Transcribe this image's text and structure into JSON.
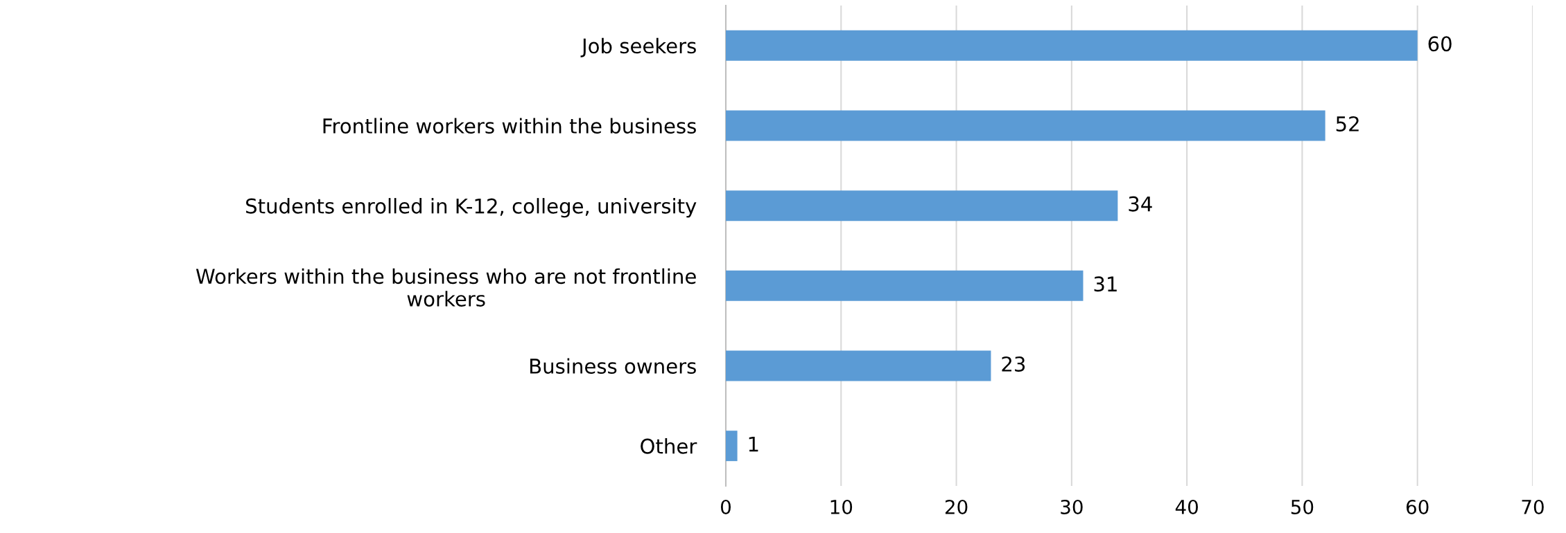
{
  "chart_data": {
    "type": "bar",
    "orientation": "horizontal",
    "categories": [
      "Job seekers",
      "Frontline workers within the business",
      "Students enrolled in K-12, college, university",
      "Workers within the business who are not frontline\nworkers",
      "Business owners",
      "Other"
    ],
    "values": [
      60,
      52,
      34,
      31,
      23,
      1
    ],
    "color": "#5b9bd5",
    "xlim": [
      0,
      70
    ],
    "xticks": [
      0,
      10,
      20,
      30,
      40,
      50,
      60,
      70
    ],
    "grid": "x",
    "data_labels": true
  }
}
